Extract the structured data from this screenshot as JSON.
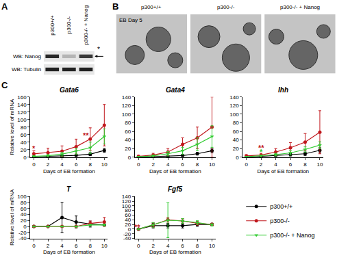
{
  "panels": {
    "A": {
      "label": "A",
      "lanes": [
        "p300+/+",
        "p300-/-",
        "p300-/- + Nanog"
      ],
      "rows": [
        "WB: Nanog",
        "WB: Tubulin"
      ],
      "band_marker": "*"
    },
    "B": {
      "label": "B",
      "lanes": [
        "p300+/+",
        "p300-/-",
        "p300-/- + Nanog"
      ],
      "caption": "EB Day 5"
    },
    "C": {
      "label": "C"
    }
  },
  "chart_data": [
    {
      "type": "line",
      "title": "Gata6",
      "x": [
        0,
        2,
        4,
        6,
        8,
        10
      ],
      "xlim": [
        -0.5,
        10.5
      ],
      "xticks": [
        0,
        2,
        4,
        6,
        8,
        10
      ],
      "ylim": [
        0,
        160
      ],
      "yticks": [
        0,
        20,
        40,
        60,
        80,
        100,
        120,
        140,
        160
      ],
      "xlabel": "Days of EB formation",
      "ylabel": "Relative level of mRNA",
      "series": [
        {
          "name": "p300+/+",
          "color": "#000000",
          "marker": "circle",
          "values": [
            1,
            2,
            3,
            5,
            8,
            18
          ],
          "errors": [
            1,
            2,
            2,
            3,
            4,
            5
          ]
        },
        {
          "name": "p300-/-",
          "color": "#c0171c",
          "marker": "circle",
          "values": [
            9,
            12,
            16,
            28,
            48,
            85
          ],
          "errors": [
            8,
            12,
            14,
            20,
            30,
            55
          ]
        },
        {
          "name": "p300-/- + Nanog",
          "color": "#33cc33",
          "marker": "triangle-down",
          "values": [
            2,
            4,
            8,
            16,
            25,
            55
          ],
          "errors": [
            2,
            3,
            5,
            8,
            15,
            20
          ]
        }
      ],
      "annotations": [
        {
          "text": "*",
          "x": 0,
          "y": 24,
          "color": "#c0171c"
        },
        {
          "text": "**",
          "x": 7.4,
          "y": 58,
          "color": "#c0171c"
        }
      ]
    },
    {
      "type": "line",
      "title": "Gata4",
      "x": [
        0,
        2,
        4,
        6,
        8,
        10
      ],
      "xlim": [
        -0.5,
        10.5
      ],
      "xticks": [
        0,
        2,
        4,
        6,
        8,
        10
      ],
      "ylim": [
        0,
        140
      ],
      "yticks": [
        0,
        20,
        40,
        60,
        80,
        100,
        120,
        140
      ],
      "xlabel": "Days of EB formation",
      "series": [
        {
          "name": "p300+/+",
          "color": "#000000",
          "marker": "circle",
          "values": [
            0,
            1,
            2,
            4,
            8,
            15
          ],
          "errors": [
            0,
            1,
            1,
            2,
            3,
            5
          ]
        },
        {
          "name": "p300-/-",
          "color": "#c0171c",
          "marker": "circle",
          "values": [
            2,
            5,
            12,
            30,
            45,
            70
          ],
          "errors": [
            2,
            4,
            8,
            15,
            25,
            70
          ]
        },
        {
          "name": "p300-/- + Nanog",
          "color": "#33cc33",
          "marker": "triangle-down",
          "values": [
            1,
            3,
            8,
            15,
            30,
            48
          ],
          "errors": [
            1,
            2,
            5,
            8,
            15,
            25
          ]
        }
      ],
      "annotations": []
    },
    {
      "type": "line",
      "title": "Ihh",
      "x": [
        0,
        2,
        4,
        6,
        8,
        10
      ],
      "xlim": [
        -0.5,
        10.5
      ],
      "xticks": [
        0,
        2,
        4,
        6,
        8,
        10
      ],
      "ylim": [
        0,
        140
      ],
      "yticks": [
        0,
        20,
        40,
        60,
        80,
        100,
        120,
        140
      ],
      "xlabel": "Days of EB formation",
      "series": [
        {
          "name": "p300+/+",
          "color": "#000000",
          "marker": "circle",
          "values": [
            0,
            2,
            4,
            6,
            8,
            16
          ],
          "errors": [
            0,
            1,
            2,
            3,
            4,
            6
          ]
        },
        {
          "name": "p300-/-",
          "color": "#c0171c",
          "marker": "circle",
          "values": [
            3,
            5,
            12,
            22,
            35,
            58
          ],
          "errors": [
            3,
            4,
            8,
            12,
            20,
            50
          ]
        },
        {
          "name": "p300-/- + Nanog",
          "color": "#33cc33",
          "marker": "triangle-down",
          "values": [
            1,
            3,
            6,
            10,
            18,
            28
          ],
          "errors": [
            1,
            2,
            3,
            5,
            6,
            8
          ]
        }
      ],
      "annotations": [
        {
          "text": "**",
          "x": 2,
          "y": 22,
          "color": "#c0171c"
        },
        {
          "text": "*",
          "x": 2,
          "y": 13,
          "color": "#33cc33"
        }
      ]
    },
    {
      "type": "line",
      "title": "T",
      "x": [
        0,
        2,
        4,
        6,
        8,
        10
      ],
      "xlim": [
        -0.5,
        10.5
      ],
      "xticks": [
        0,
        2,
        4,
        6,
        8,
        10
      ],
      "ylim": [
        -40,
        100
      ],
      "yticks": [
        -40,
        -20,
        0,
        20,
        40,
        60,
        80,
        100
      ],
      "xlabel": "Days of EB formation",
      "ylabel": "Relative level of mRNA",
      "series": [
        {
          "name": "p300+/+",
          "color": "#000000",
          "marker": "circle",
          "values": [
            0,
            0,
            30,
            15,
            8,
            5
          ],
          "errors": [
            0,
            0,
            50,
            20,
            10,
            3
          ]
        },
        {
          "name": "p300-/-",
          "color": "#c0171c",
          "marker": "circle",
          "values": [
            0,
            0,
            0,
            0,
            10,
            15
          ],
          "errors": [
            0,
            0,
            0,
            0,
            8,
            15
          ]
        },
        {
          "name": "p300-/- + Nanog",
          "color": "#33cc33",
          "marker": "triangle-down",
          "values": [
            0,
            0,
            0,
            0,
            5,
            5
          ],
          "errors": [
            0,
            0,
            0,
            0,
            3,
            3
          ]
        }
      ],
      "annotations": []
    },
    {
      "type": "line",
      "title": "Fgf5",
      "x": [
        0,
        2,
        4,
        6,
        8,
        10
      ],
      "xlim": [
        -0.5,
        10.5
      ],
      "xticks": [
        0,
        2,
        4,
        6,
        8,
        10
      ],
      "ylim": [
        -40,
        140
      ],
      "yticks": [
        -40,
        -20,
        0,
        20,
        40,
        60,
        80,
        100,
        120,
        140
      ],
      "xlabel": "Days of EB formation",
      "series": [
        {
          "name": "p300+/+",
          "color": "#000000",
          "marker": "circle",
          "values": [
            0,
            15,
            15,
            15,
            20,
            20
          ],
          "errors": [
            1,
            10,
            10,
            10,
            8,
            5
          ]
        },
        {
          "name": "p300-/-",
          "color": "#c0171c",
          "marker": "circle",
          "values": [
            0,
            18,
            40,
            35,
            25,
            20
          ],
          "errors": [
            1,
            10,
            10,
            10,
            8,
            5
          ]
        },
        {
          "name": "p300-/- + Nanog",
          "color": "#33cc33",
          "marker": "triangle-down",
          "values": [
            0,
            18,
            38,
            35,
            28,
            18
          ],
          "errors": [
            1,
            10,
            75,
            10,
            8,
            5
          ]
        }
      ],
      "annotations": [
        {
          "text": "**",
          "x": -0.2,
          "y": 10,
          "color": "#c0171c"
        }
      ]
    }
  ]
}
